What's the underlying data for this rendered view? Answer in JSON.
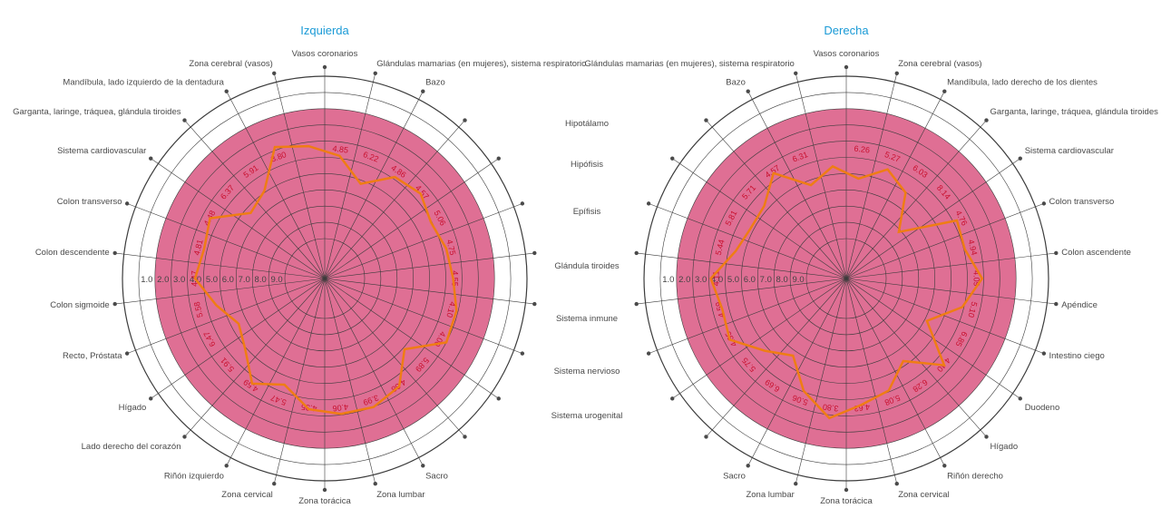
{
  "chart_data": [
    {
      "type": "radar",
      "title": "Izquierda",
      "categories": [
        "Vasos coronarios",
        "Glándulas mamarias (en mujeres), sistema respiratorio",
        "Bazo",
        "",
        "",
        "",
        "",
        "",
        "",
        "",
        "",
        "Sacro",
        "Zona lumbar",
        "Zona torácica",
        "Zona cervical",
        "Riñón izquierdo",
        "Lado derecho del corazón",
        "Hígado",
        "Recto, Próstata",
        "Colon sigmoide",
        "Colon descendente",
        "Colon transverso",
        "Sistema cardiovascular",
        "Garganta, laringe, tráquea, glándula tiroides",
        "Mandíbula, lado izquierdo de la dentadura",
        "Zona cerebral (vasos)"
      ],
      "values": [
        4.85,
        6.22,
        4.86,
        4.57,
        5.06,
        4.75,
        4.55,
        4.1,
        4.0,
        5.89,
        4.38,
        3.99,
        4.06,
        4.35,
        5.47,
        4.59,
        5.91,
        6.47,
        5.58,
        4.47,
        4.81,
        4.48,
        6.37,
        5.91,
        3.8,
        4.25
      ],
      "value_labels": [
        "4.85",
        "6.22",
        "4.86",
        "4.57",
        "5.06",
        "4.75",
        "4.55",
        "4.10",
        "4.00",
        "5.89",
        "4.38",
        "3.99",
        "4.06",
        "4.35",
        "5.47",
        "4.59",
        "5.91",
        "6.47",
        "5.58",
        "4.47",
        "4.81",
        "4.48",
        "6.37",
        "5.91",
        "3.80",
        ""
      ],
      "rlim": [
        10,
        0
      ],
      "ticks": [
        "9.0",
        "8.0",
        "7.0",
        "6.0",
        "5.0",
        "4.0",
        "3.0",
        "2.0",
        "1.0"
      ],
      "zones": [
        {
          "from": 10,
          "to": 9,
          "color": "#f8ee9f"
        },
        {
          "from": 9,
          "to": 7,
          "color": "#fcf7d2"
        },
        {
          "from": 7,
          "to": 4,
          "color": "#b0d48c"
        },
        {
          "from": 4,
          "to": 2,
          "color": "#efae80"
        },
        {
          "from": 2,
          "to": 0,
          "color": "#df6f94"
        }
      ],
      "line_color": "#ef7d14"
    },
    {
      "type": "radar",
      "title": "Derecha",
      "categories": [
        "Vasos coronarios",
        "Zona cerebral (vasos)",
        "Mandíbula, lado derecho de los dientes",
        "Garganta, laringe, tráquea, glándula tiroides",
        "Sistema cardiovascular",
        "Colon transverso",
        "Colon ascendente",
        "Apéndice",
        "Intestino ciego",
        "Duodeno",
        "Hígado",
        "Riñón derecho",
        "Zona cervical",
        "Zona torácica",
        "Zona lumbar",
        "Sacro",
        "",
        "",
        "",
        "",
        "",
        "",
        "",
        "",
        "Bazo",
        "Glándulas mamarias (en mujeres), sistema respiratorio"
      ],
      "values": [
        6.26,
        5.27,
        6.03,
        8.14,
        4.76,
        4.94,
        4.09,
        5.1,
        6.85,
        4.4,
        6.28,
        5.08,
        4.63,
        3.8,
        5.06,
        6.69,
        5.75,
        4.35,
        4.59,
        4.11,
        5.44,
        5.81,
        5.71,
        4.57,
        6.31,
        5.5
      ],
      "value_labels": [
        "6.26",
        "5.27",
        "6.03",
        "8.14",
        "4.76",
        "4.94",
        "4.09",
        "5.10",
        "6.85",
        "4.40",
        "6.28",
        "5.08",
        "4.63",
        "3.80",
        "5.06",
        "6.69",
        "5.75",
        "4.35",
        "4.59",
        "4.11",
        "5.44",
        "5.81",
        "5.71",
        "4.57",
        "6.31",
        ""
      ],
      "rlim": [
        10,
        0
      ],
      "ticks": [
        "9.0",
        "8.0",
        "7.0",
        "6.0",
        "5.0",
        "4.0",
        "3.0",
        "2.0",
        "1.0"
      ],
      "zones": [
        {
          "from": 10,
          "to": 9,
          "color": "#f8ee9f"
        },
        {
          "from": 9,
          "to": 7,
          "color": "#fcf7d2"
        },
        {
          "from": 7,
          "to": 4,
          "color": "#b0d48c"
        },
        {
          "from": 4,
          "to": 2,
          "color": "#efae80"
        },
        {
          "from": 2,
          "to": 0,
          "color": "#df6f94"
        }
      ],
      "line_color": "#ef7d14"
    }
  ],
  "middle_labels": [
    "Hipotálamo",
    "Hipófisis",
    "Epífisis",
    "Glándula tiroides",
    "Sistema inmune",
    "Sistema nervioso",
    "Sistema urogenital"
  ]
}
